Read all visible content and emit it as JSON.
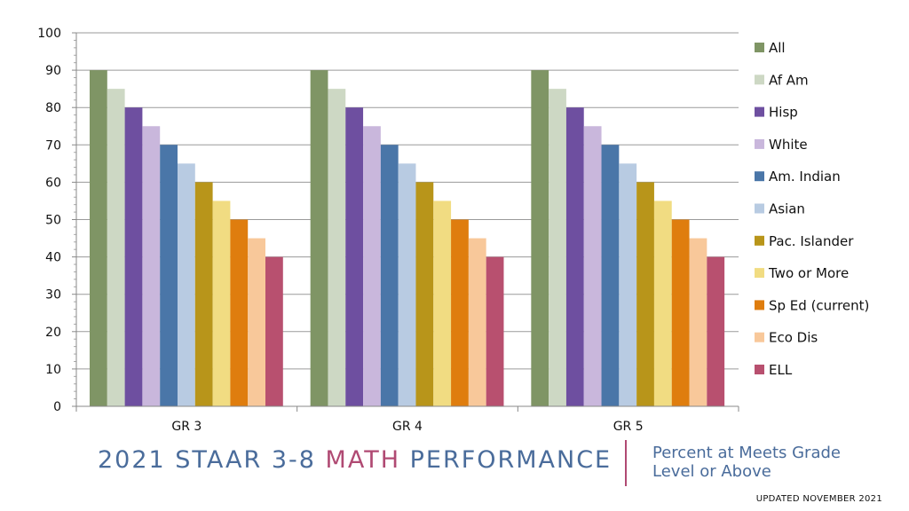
{
  "chart_data": {
    "type": "bar",
    "categories": [
      "GR 3",
      "GR 4",
      "GR 5"
    ],
    "series": [
      {
        "name": "All",
        "values": [
          90,
          90,
          90
        ],
        "color": "#7f9565"
      },
      {
        "name": "Af Am",
        "values": [
          85,
          85,
          85
        ],
        "color": "#cdd8c4"
      },
      {
        "name": "Hisp",
        "values": [
          80,
          80,
          80
        ],
        "color": "#6e4fa0"
      },
      {
        "name": "White",
        "values": [
          75,
          75,
          75
        ],
        "color": "#c9b7dc"
      },
      {
        "name": "Am. Indian",
        "values": [
          70,
          70,
          70
        ],
        "color": "#4a76a8"
      },
      {
        "name": "Asian",
        "values": [
          65,
          65,
          65
        ],
        "color": "#b8cbe2"
      },
      {
        "name": "Pac. Islander",
        "values": [
          60,
          60,
          60
        ],
        "color": "#b8951a"
      },
      {
        "name": "Two or More",
        "values": [
          55,
          55,
          55
        ],
        "color": "#f1dc82"
      },
      {
        "name": "Sp Ed (current)",
        "values": [
          50,
          50,
          50
        ],
        "color": "#df7d0e"
      },
      {
        "name": "Eco Dis",
        "values": [
          45,
          45,
          45
        ],
        "color": "#f8c89a"
      },
      {
        "name": "ELL",
        "values": [
          40,
          40,
          40
        ],
        "color": "#b8506f"
      }
    ],
    "yticks": [
      "0",
      "10",
      "20",
      "30",
      "40",
      "50",
      "60",
      "70",
      "80",
      "90",
      "100"
    ],
    "ylim": [
      0,
      100
    ],
    "grid": true,
    "legend": "right"
  },
  "footer": {
    "title_part1": "2021 STAAR 3-8 ",
    "title_accent": "MATH",
    "title_part2": " PERFORMANCE",
    "subtitle_line1": "Percent at Meets Grade",
    "subtitle_line2": "Level or Above",
    "updated": "UPDATED NOVEMBER 2021"
  }
}
